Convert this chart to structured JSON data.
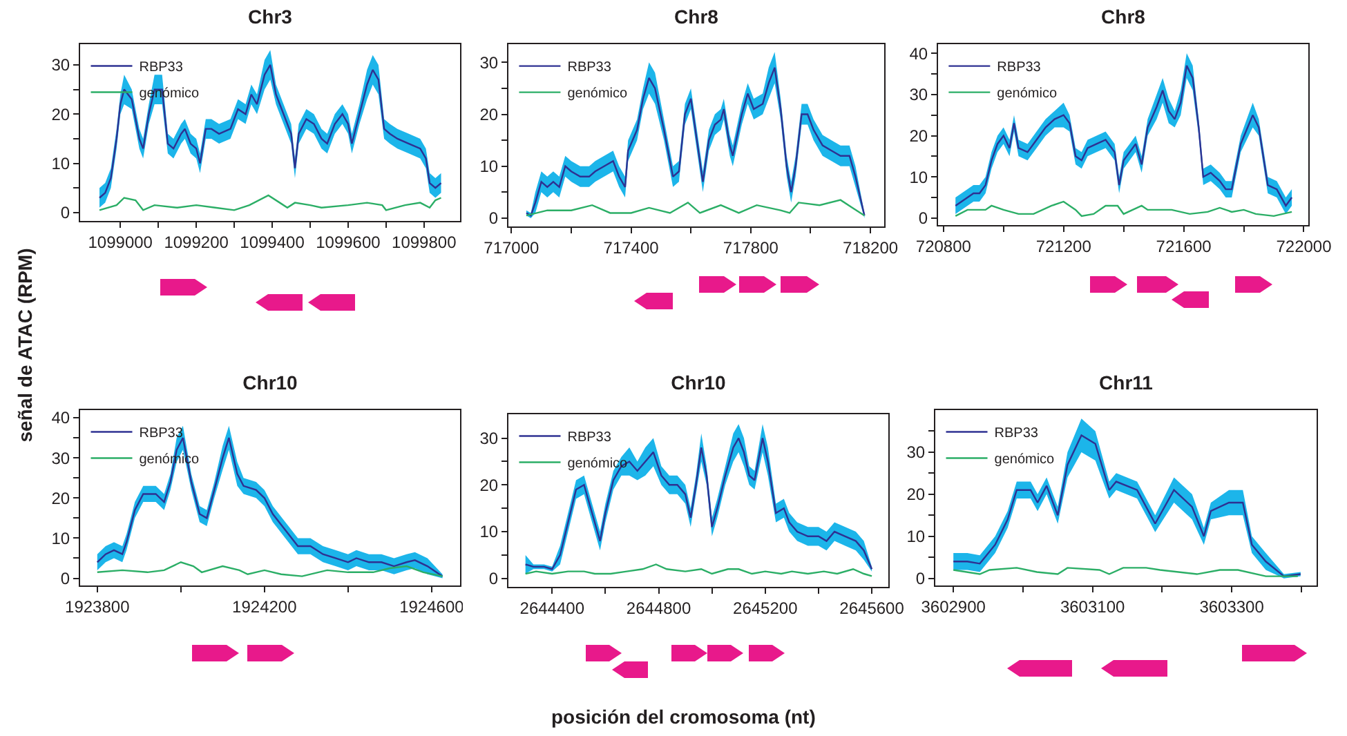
{
  "chart_data": [
    {
      "type": "line",
      "title": "Chr3",
      "ylabel": "señal de ATAC (RPM)",
      "legend": "top left",
      "grid": false,
      "marker": "none",
      "line_style": "solid",
      "xlim": [
        1098894,
        1099895
      ],
      "xticks": [
        1099000,
        {
          "value": 1099100,
          "label": null
        },
        1099200,
        {
          "value": 1099300,
          "label": null
        },
        1099400,
        {
          "value": 1099500,
          "label": null
        },
        1099600,
        {
          "value": 1099700,
          "label": null
        },
        1099800
      ],
      "ylim": [
        -1.7,
        34.2
      ],
      "yticks": [
        0,
        {
          "value": 5,
          "label": null
        },
        10,
        {
          "value": 15,
          "label": null
        },
        20,
        {
          "value": 25,
          "label": null
        },
        30
      ],
      "series": [
        {
          "name": "RBP33",
          "color": "#2e3192",
          "x": [
            1098945,
            1098960,
            1098975,
            1098990,
            1099000,
            1099010,
            1099030,
            1099050,
            1099060,
            1099075,
            1099090,
            1099110,
            1099125,
            1099140,
            1099160,
            1099170,
            1099185,
            1099200,
            1099210,
            1099225,
            1099240,
            1099260,
            1099290,
            1099310,
            1099330,
            1099345,
            1099360,
            1099380,
            1099395,
            1099410,
            1099430,
            1099450,
            1099460,
            1099470,
            1099490,
            1099510,
            1099530,
            1099545,
            1099565,
            1099585,
            1099600,
            1099610,
            1099630,
            1099650,
            1099665,
            1099680,
            1099695,
            1099710,
            1099730,
            1099760,
            1099790,
            1099805,
            1099815,
            1099830,
            1099845
          ],
          "values": [
            3,
            4,
            7,
            15,
            22,
            25,
            23,
            15,
            13,
            20,
            25,
            25,
            14,
            13,
            16,
            17,
            14,
            13,
            10,
            17,
            17,
            16,
            17,
            21,
            20,
            24,
            22,
            28,
            30,
            24,
            20,
            16,
            9,
            16,
            19,
            18,
            15,
            14,
            18,
            20,
            18,
            14,
            20,
            26,
            29,
            27,
            17,
            16,
            15,
            14,
            13,
            11,
            6,
            5,
            6
          ],
          "lower": [
            1,
            2,
            5,
            13,
            20,
            22,
            21,
            13,
            11,
            18,
            22,
            22,
            12,
            11,
            14,
            15,
            12,
            11,
            8,
            15,
            15,
            14,
            15,
            19,
            18,
            22,
            20,
            25,
            27,
            22,
            18,
            14,
            7,
            14,
            17,
            16,
            13,
            12,
            16,
            18,
            16,
            12,
            18,
            23,
            26,
            24,
            15,
            14,
            13,
            12,
            11,
            9,
            4,
            3,
            4
          ],
          "upper": [
            5,
            6,
            9,
            17,
            24,
            28,
            25,
            17,
            15,
            22,
            28,
            28,
            16,
            15,
            18,
            19,
            16,
            15,
            12,
            19,
            19,
            18,
            19,
            23,
            22,
            26,
            24,
            31,
            33,
            26,
            22,
            18,
            11,
            18,
            21,
            20,
            17,
            16,
            20,
            22,
            20,
            16,
            22,
            29,
            32,
            30,
            19,
            18,
            17,
            16,
            15,
            13,
            8,
            7,
            8
          ]
        },
        {
          "name": "genómico",
          "color": "#2bae66",
          "x": [
            1098945,
            1098990,
            1099010,
            1099040,
            1099060,
            1099090,
            1099150,
            1099200,
            1099250,
            1099300,
            1099340,
            1099390,
            1099420,
            1099440,
            1099460,
            1099500,
            1099530,
            1099600,
            1099650,
            1099690,
            1099700,
            1099750,
            1099790,
            1099815,
            1099830,
            1099845
          ],
          "values": [
            0.5,
            1.5,
            3,
            2.5,
            0.5,
            1.5,
            1,
            1.5,
            1,
            0.5,
            1.5,
            3.5,
            2,
            1,
            2,
            1.5,
            1,
            1.5,
            2,
            1.5,
            0.5,
            1.5,
            2,
            1,
            2.5,
            3
          ]
        }
      ]
    },
    {
      "type": "line",
      "title": "Chr8",
      "legend": "top left",
      "grid": false,
      "marker": "none",
      "line_style": "solid",
      "xlim": [
        716990,
        718246
      ],
      "xticks": [
        717000,
        {
          "value": 717200,
          "label": null
        },
        717400,
        {
          "value": 717600,
          "label": null
        },
        717800,
        {
          "value": 718000,
          "label": null
        },
        718200
      ],
      "ylim": [
        -1.6,
        33.5
      ],
      "yticks": [
        0,
        {
          "value": 5,
          "label": null
        },
        10,
        {
          "value": 15,
          "label": null
        },
        20,
        {
          "value": 25,
          "label": null
        },
        30
      ],
      "series": [
        {
          "name": "RBP33",
          "color": "#2e3192",
          "x": [
            717050,
            717065,
            717080,
            717100,
            717120,
            717140,
            717160,
            717180,
            717200,
            717230,
            717260,
            717280,
            717310,
            717340,
            717360,
            717380,
            717390,
            717420,
            717440,
            717460,
            717480,
            717510,
            717540,
            717560,
            717580,
            717600,
            717620,
            717640,
            717660,
            717680,
            717700,
            717710,
            717730,
            717740,
            717770,
            717790,
            717810,
            717840,
            717860,
            717880,
            717900,
            717920,
            717935,
            717950,
            717970,
            717990,
            718010,
            718040,
            718070,
            718100,
            718130,
            718150,
            718180
          ],
          "values": [
            1,
            0.5,
            3,
            7,
            6,
            7,
            6,
            10,
            9,
            8,
            8,
            9,
            10,
            11,
            8,
            6,
            13,
            17,
            23,
            27,
            25,
            17,
            8,
            9,
            20,
            23,
            15,
            7,
            15,
            18,
            19,
            21,
            14,
            12,
            20,
            24,
            21,
            22,
            26,
            29,
            21,
            10,
            5,
            10,
            20,
            20,
            17,
            14,
            13,
            12,
            12,
            8,
            0.5
          ],
          "lower": [
            0.5,
            0,
            1,
            5,
            4,
            5,
            4,
            8,
            7,
            6,
            6,
            7,
            8,
            9,
            6,
            4,
            11,
            15,
            21,
            24,
            22,
            15,
            6,
            7,
            18,
            21,
            13,
            5,
            13,
            16,
            17,
            19,
            12,
            10,
            18,
            22,
            19,
            20,
            23,
            26,
            19,
            8,
            3,
            8,
            18,
            18,
            15,
            12,
            11,
            10,
            10,
            6,
            0
          ],
          "upper": [
            1.5,
            1,
            5,
            9,
            8,
            9,
            8,
            12,
            11,
            10,
            10,
            11,
            12,
            13,
            10,
            8,
            15,
            19,
            25,
            30,
            28,
            19,
            10,
            11,
            22,
            25,
            17,
            9,
            17,
            20,
            21,
            23,
            16,
            14,
            22,
            26,
            23,
            24,
            29,
            32,
            23,
            12,
            7,
            12,
            22,
            22,
            19,
            16,
            15,
            14,
            14,
            10,
            1
          ]
        },
        {
          "name": "genómico",
          "color": "#2bae66",
          "x": [
            717050,
            717120,
            717200,
            717270,
            717330,
            717400,
            717460,
            717530,
            717590,
            717630,
            717700,
            717760,
            717820,
            717900,
            717930,
            717960,
            718030,
            718100,
            718140,
            718180
          ],
          "values": [
            0.5,
            1.5,
            1.5,
            2.5,
            1,
            1,
            2,
            1,
            3,
            1,
            2.5,
            1,
            2.5,
            1.5,
            1,
            3,
            2.5,
            3.5,
            2,
            0.5
          ]
        }
      ]
    },
    {
      "type": "line",
      "title": "Chr8",
      "legend": "top left",
      "grid": false,
      "marker": "none",
      "line_style": "solid",
      "xlim": [
        720782,
        722015
      ],
      "xticks": [
        720800,
        {
          "value": 721000,
          "label": null
        },
        721200,
        {
          "value": 721400,
          "label": null
        },
        721600,
        {
          "value": 721800,
          "label": null
        },
        722000
      ],
      "ylim": [
        -1.7,
        42.2
      ],
      "yticks": [
        0,
        {
          "value": 5,
          "label": null
        },
        10,
        {
          "value": 15,
          "label": null
        },
        20,
        {
          "value": 25,
          "label": null
        },
        30,
        {
          "value": 35,
          "label": null
        },
        40
      ],
      "series": [
        {
          "name": "RBP33",
          "color": "#2e3192",
          "x": [
            720840,
            720860,
            720880,
            720900,
            720920,
            720940,
            720960,
            720980,
            721000,
            721020,
            721035,
            721050,
            721080,
            721110,
            721140,
            721170,
            721200,
            721220,
            721240,
            721260,
            721280,
            721310,
            721340,
            721370,
            721385,
            721400,
            721420,
            721440,
            721460,
            721480,
            721510,
            721530,
            721550,
            721570,
            721590,
            721610,
            721630,
            721650,
            721665,
            721690,
            721720,
            721740,
            721760,
            721790,
            721830,
            721850,
            721880,
            721910,
            721940,
            721960
          ],
          "values": [
            3,
            4,
            5,
            6,
            6,
            8,
            14,
            18,
            20,
            17,
            23,
            17,
            16,
            19,
            22,
            24,
            25,
            23,
            15,
            14,
            17,
            18,
            19,
            16,
            8,
            14,
            16,
            18,
            13,
            22,
            27,
            31,
            26,
            24,
            28,
            37,
            34,
            22,
            10,
            11,
            9,
            7,
            7,
            18,
            25,
            22,
            8,
            7,
            3,
            5
          ],
          "lower": [
            1,
            2,
            3,
            4,
            4,
            6,
            12,
            16,
            18,
            15,
            21,
            15,
            14,
            17,
            20,
            22,
            22,
            21,
            13,
            12,
            15,
            16,
            17,
            14,
            6,
            12,
            14,
            16,
            11,
            20,
            24,
            28,
            23,
            22,
            25,
            34,
            31,
            20,
            8,
            9,
            7,
            5,
            5,
            16,
            22,
            20,
            6,
            5,
            1,
            3
          ],
          "upper": [
            5,
            6,
            7,
            8,
            8,
            10,
            16,
            20,
            22,
            19,
            25,
            19,
            18,
            21,
            24,
            26,
            28,
            25,
            17,
            16,
            19,
            20,
            21,
            18,
            10,
            16,
            18,
            20,
            15,
            24,
            30,
            34,
            29,
            26,
            31,
            40,
            37,
            24,
            12,
            13,
            11,
            9,
            9,
            20,
            28,
            24,
            10,
            9,
            5,
            7
          ]
        },
        {
          "name": "genómico",
          "color": "#2bae66",
          "x": [
            720840,
            720880,
            720940,
            720960,
            721000,
            721050,
            721100,
            721160,
            721200,
            721240,
            721260,
            721300,
            721340,
            721380,
            721400,
            721460,
            721480,
            721560,
            721620,
            721680,
            721720,
            721760,
            721800,
            721840,
            721900,
            721960
          ],
          "values": [
            0.5,
            2,
            2,
            3,
            2,
            1,
            1,
            3,
            4,
            2,
            0.5,
            1,
            3,
            3,
            1,
            3,
            2,
            2,
            1,
            1.5,
            2.5,
            1.5,
            2,
            1,
            0.5,
            1.5
          ]
        }
      ]
    },
    {
      "type": "line",
      "title": "Chr10",
      "legend": "top left",
      "grid": false,
      "marker": "none",
      "line_style": "solid",
      "xlim": [
        1923759,
        1924668
      ],
      "xticks": [
        1923800,
        {
          "value": 1924000,
          "label": null
        },
        1924200,
        {
          "value": 1924400,
          "label": null
        },
        1924600
      ],
      "ylim": [
        -1.8,
        41.9
      ],
      "yticks": [
        0,
        {
          "value": 5,
          "label": null
        },
        10,
        {
          "value": 15,
          "label": null
        },
        20,
        {
          "value": 25,
          "label": null
        },
        30,
        {
          "value": 35,
          "label": null
        },
        40
      ],
      "series": [
        {
          "name": "RBP33",
          "color": "#2e3192",
          "x": [
            1923800,
            1923820,
            1923840,
            1923860,
            1923870,
            1923890,
            1923910,
            1923940,
            1923960,
            1923975,
            1923990,
            1924005,
            1924025,
            1924045,
            1924062,
            1924080,
            1924100,
            1924115,
            1924135,
            1924150,
            1924180,
            1924200,
            1924220,
            1924250,
            1924280,
            1924310,
            1924340,
            1924370,
            1924400,
            1924420,
            1924450,
            1924480,
            1924510,
            1924540,
            1924560,
            1924590,
            1924626
          ],
          "values": [
            4,
            6,
            7,
            6,
            9,
            17,
            21,
            21,
            19,
            24,
            32,
            35,
            24,
            16,
            15,
            22,
            30,
            35,
            26,
            23,
            22,
            20,
            16,
            12,
            8,
            8,
            6,
            5,
            4,
            5,
            4,
            4,
            3,
            4,
            4.5,
            3,
            0.5
          ],
          "lower": [
            2,
            4,
            5,
            4,
            7,
            15,
            19,
            19,
            17,
            22,
            29,
            32,
            22,
            14,
            13,
            20,
            27,
            32,
            23,
            21,
            20,
            18,
            14,
            10,
            6,
            6,
            4,
            3,
            2,
            3,
            2,
            2,
            1,
            2,
            2.5,
            1,
            0
          ],
          "upper": [
            6,
            8,
            9,
            8,
            11,
            19,
            23,
            23,
            21,
            26,
            35,
            38,
            26,
            18,
            17,
            24,
            33,
            38,
            29,
            25,
            24,
            22,
            18,
            14,
            10,
            10,
            8,
            7,
            6,
            7,
            6,
            6,
            5,
            6,
            6.5,
            5,
            1
          ]
        },
        {
          "name": "genómico",
          "color": "#2bae66",
          "x": [
            1923800,
            1923860,
            1923920,
            1923960,
            1924000,
            1924030,
            1924050,
            1924100,
            1924140,
            1924160,
            1924200,
            1924240,
            1924290,
            1924350,
            1924400,
            1924460,
            1924500,
            1924540,
            1924580,
            1924626
          ],
          "values": [
            1.5,
            2,
            1.5,
            2,
            4,
            3,
            1.5,
            3,
            2,
            1,
            2,
            1,
            0.5,
            2,
            1.5,
            1.5,
            2.5,
            3,
            1.5,
            0.5
          ]
        }
      ]
    },
    {
      "type": "line",
      "title": "Chr10",
      "xlabel": "posición del cromosoma (nt)",
      "legend": "top left",
      "grid": false,
      "marker": "none",
      "line_style": "solid",
      "xlim": [
        2644236,
        2645662
      ],
      "xticks": [
        2644400,
        {
          "value": 2644600,
          "label": null
        },
        2644800,
        {
          "value": 2645000,
          "label": null
        },
        2645200,
        {
          "value": 2645400,
          "label": null
        },
        2645600
      ],
      "ylim": [
        -1.8,
        35.1
      ],
      "yticks": [
        0,
        {
          "value": 5,
          "label": null
        },
        10,
        {
          "value": 15,
          "label": null
        },
        20,
        {
          "value": 25,
          "label": null
        },
        30
      ],
      "series": [
        {
          "name": "RBP33",
          "color": "#2e3192",
          "x": [
            2644300,
            2644330,
            2644370,
            2644400,
            2644430,
            2644460,
            2644490,
            2644520,
            2644550,
            2644580,
            2644600,
            2644630,
            2644660,
            2644690,
            2644720,
            2644750,
            2644780,
            2644810,
            2644840,
            2644870,
            2644900,
            2644920,
            2644940,
            2644960,
            2644980,
            2645000,
            2645020,
            2645050,
            2645080,
            2645100,
            2645120,
            2645140,
            2645160,
            2645190,
            2645210,
            2645240,
            2645270,
            2645290,
            2645320,
            2645360,
            2645400,
            2645430,
            2645460,
            2645500,
            2645540,
            2645570,
            2645600
          ],
          "values": [
            3,
            2.5,
            2.5,
            2,
            5,
            12,
            19,
            20,
            14,
            8,
            14,
            21,
            24,
            25,
            23,
            25,
            27,
            22,
            20,
            20,
            18,
            13,
            20,
            28,
            22,
            11,
            15,
            22,
            28,
            30,
            27,
            22,
            21,
            30,
            25,
            14,
            15,
            12,
            10,
            9,
            9,
            8,
            10,
            9,
            8,
            6,
            2
          ],
          "lower": [
            1,
            2,
            2,
            1.5,
            3,
            10,
            17,
            18,
            12,
            6,
            12,
            19,
            22,
            22,
            21,
            22,
            24,
            20,
            18,
            18,
            16,
            11,
            18,
            25,
            20,
            9,
            13,
            20,
            25,
            27,
            24,
            20,
            19,
            27,
            22,
            12,
            13,
            10,
            8,
            7,
            7,
            6,
            8,
            7,
            6,
            4,
            1.5
          ],
          "upper": [
            5,
            3,
            3,
            2.5,
            7,
            14,
            21,
            22,
            16,
            10,
            16,
            23,
            26,
            28,
            25,
            28,
            30,
            24,
            22,
            22,
            20,
            15,
            22,
            31,
            24,
            13,
            17,
            24,
            31,
            33,
            30,
            24,
            23,
            33,
            28,
            16,
            17,
            14,
            12,
            11,
            11,
            10,
            12,
            11,
            10,
            8,
            2.5
          ]
        },
        {
          "name": "genómico",
          "color": "#2bae66",
          "x": [
            2644300,
            2644340,
            2644400,
            2644460,
            2644520,
            2644560,
            2644620,
            2644680,
            2644740,
            2644790,
            2644830,
            2644900,
            2644960,
            2645000,
            2645060,
            2645100,
            2645150,
            2645200,
            2645260,
            2645300,
            2645360,
            2645420,
            2645470,
            2645530,
            2645570,
            2645600
          ],
          "values": [
            1,
            1.5,
            1,
            1.5,
            1.5,
            1,
            1,
            1.5,
            2,
            3,
            2,
            1.5,
            2,
            1,
            2,
            2,
            1,
            1.5,
            1,
            1.5,
            1,
            1.5,
            1,
            2,
            1,
            0.5
          ]
        }
      ]
    },
    {
      "type": "line",
      "title": "Chr11",
      "legend": "top left",
      "grid": false,
      "marker": "none",
      "line_style": "solid",
      "xlim": [
        3602874,
        3603422
      ],
      "xticks": [
        3602900,
        {
          "value": 3603000,
          "label": null
        },
        3603100,
        {
          "value": 3603200,
          "label": null
        },
        3603300,
        {
          "value": 3603400,
          "label": null
        }
      ],
      "ylim": [
        -1.7,
        40
      ],
      "yticks": [
        0,
        {
          "value": 5,
          "label": null
        },
        10,
        {
          "value": 15,
          "label": null
        },
        20,
        {
          "value": 25,
          "label": null
        },
        30,
        {
          "value": 35,
          "label": null
        }
      ],
      "series": [
        {
          "name": "RBP33",
          "color": "#2e3192",
          "x": [
            3602900,
            3602920,
            3602938,
            3602960,
            3602978,
            3602991,
            3603011,
            3603021,
            3603034,
            3603050,
            3603064,
            3603084,
            3603104,
            3603124,
            3603134,
            3603164,
            3603190,
            3603217,
            3603243,
            3603260,
            3603270,
            3603296,
            3603316,
            3603329,
            3603349,
            3603375,
            3603399
          ],
          "values": [
            4,
            4,
            3.5,
            8,
            14,
            21,
            21,
            18,
            22,
            15,
            27,
            34,
            32,
            21,
            23,
            21,
            13,
            21,
            17,
            10,
            16,
            18,
            18,
            8,
            4,
            0.5,
            1
          ],
          "lower": [
            2,
            2,
            1.5,
            6,
            12,
            19,
            19,
            16,
            20,
            13,
            24,
            30,
            28,
            19,
            21,
            19,
            11,
            18,
            14,
            8,
            14,
            15,
            15,
            6,
            2,
            0,
            0.5
          ],
          "upper": [
            6,
            6,
            5.5,
            10,
            16,
            23,
            23,
            20,
            24,
            17,
            30,
            38,
            35,
            23,
            25,
            23,
            15,
            24,
            20,
            12,
            18,
            21,
            21,
            10,
            6,
            1,
            1.5
          ]
        },
        {
          "name": "genómico",
          "color": "#2bae66",
          "x": [
            3602900,
            3602938,
            3602952,
            3602991,
            3603020,
            3603050,
            3603064,
            3603110,
            3603124,
            3603144,
            3603177,
            3603197,
            3603250,
            3603283,
            3603309,
            3603349,
            3603395
          ],
          "values": [
            2,
            1,
            2,
            2.5,
            1.5,
            1,
            2.5,
            2,
            1,
            2.5,
            2.5,
            2,
            1,
            2,
            2,
            0.5,
            0.5
          ]
        }
      ]
    }
  ]
}
